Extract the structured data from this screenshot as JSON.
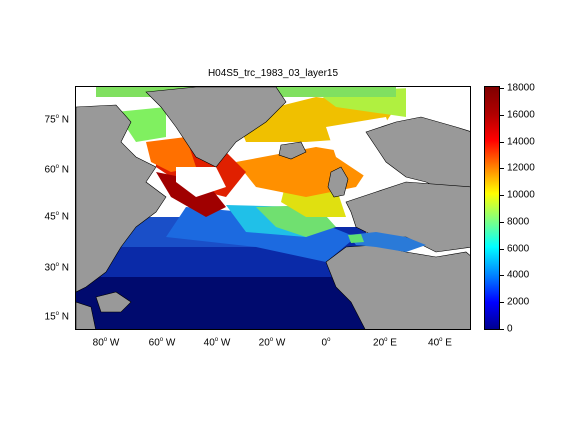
{
  "figure": {
    "title": "H04S5_trc_1983_03_layer15"
  },
  "axes": {
    "lat_labels": [
      {
        "deg": "75",
        "hemi": "N",
        "value": 75
      },
      {
        "deg": "60",
        "hemi": "N",
        "value": 60
      },
      {
        "deg": "45",
        "hemi": "N",
        "value": 45
      },
      {
        "deg": "30",
        "hemi": "N",
        "value": 30
      },
      {
        "deg": "15",
        "hemi": "N",
        "value": 15
      }
    ],
    "lon_labels": [
      {
        "deg": "80",
        "hemi": "W",
        "value": -80
      },
      {
        "deg": "60",
        "hemi": "W",
        "value": -60
      },
      {
        "deg": "40",
        "hemi": "W",
        "value": -40
      },
      {
        "deg": "20",
        "hemi": "W",
        "value": -20
      },
      {
        "deg": "0",
        "hemi": "",
        "value": 0
      },
      {
        "deg": "20",
        "hemi": "E",
        "value": 20
      },
      {
        "deg": "40",
        "hemi": "E",
        "value": 40
      }
    ]
  },
  "colorbar": {
    "ticks": [
      "0",
      "2000",
      "4000",
      "6000",
      "8000",
      "10000",
      "12000",
      "14000",
      "16000",
      "18000"
    ],
    "min": 0,
    "max": 18000,
    "colormap": "jet"
  },
  "map": {
    "land_color": "#999999",
    "missing_color": "#ffffff",
    "extent": {
      "lon": [
        -92,
        48
      ],
      "lat": [
        10,
        82
      ]
    }
  }
}
